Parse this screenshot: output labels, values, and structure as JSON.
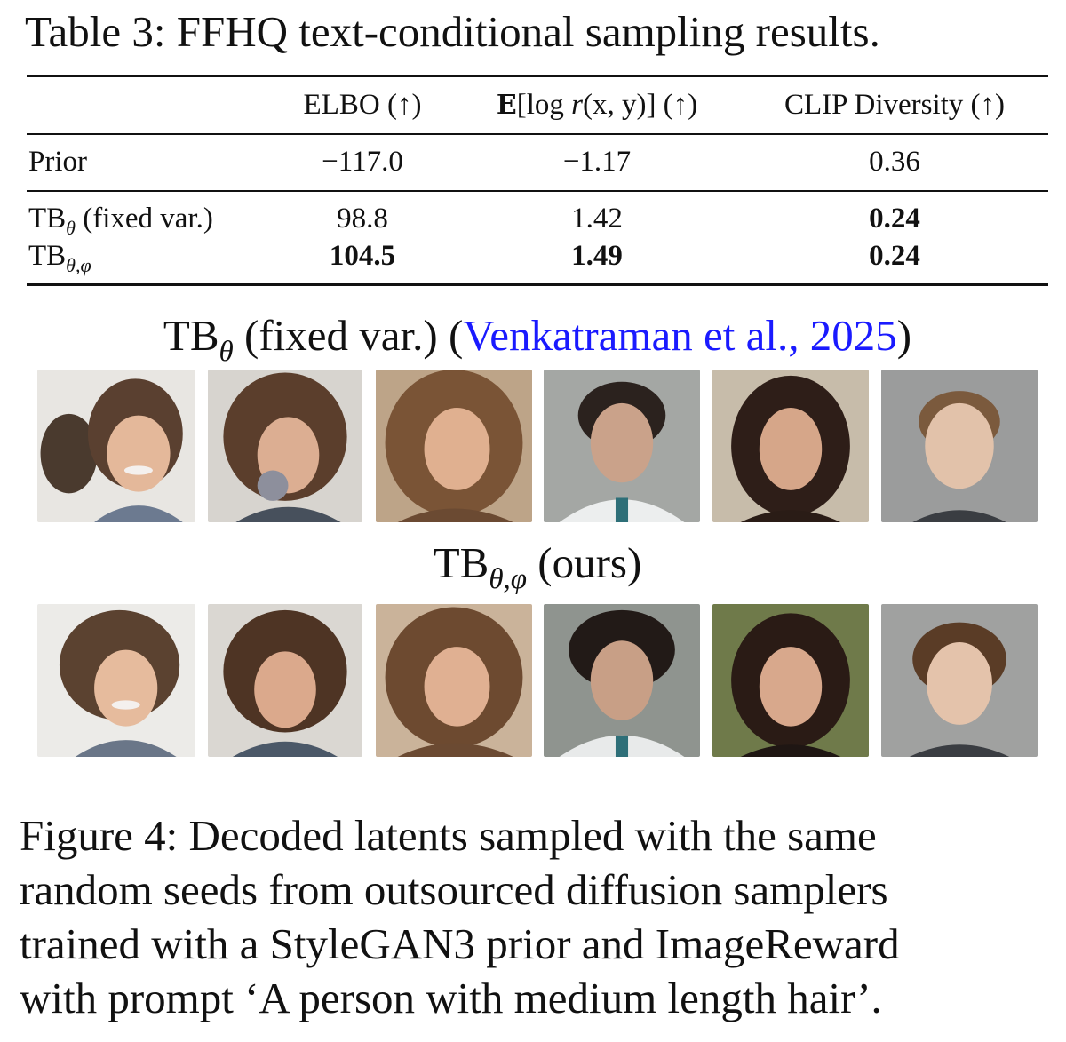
{
  "table": {
    "caption": "Table 3: FFHQ text-conditional sampling results.",
    "headers": {
      "col1": "ELBO (↑)",
      "col2_prefix": "E",
      "col2_main": "[log ",
      "col2_r": "r",
      "col2_args": "(x, y)] (↑)",
      "col3": "CLIP Diversity (↑)"
    },
    "rows": [
      {
        "label": "Prior",
        "sub": "",
        "suffix": "",
        "elbo": "−117.0",
        "logr": "−1.17",
        "clip": "0.36"
      },
      {
        "label": "TB",
        "sub": "θ",
        "suffix": " (fixed var.)",
        "elbo": "98.8",
        "logr": "1.42",
        "clip": "0.24"
      },
      {
        "label": "TB",
        "sub": "θ,φ",
        "suffix": "",
        "elbo": "104.5",
        "logr": "1.49",
        "clip": "0.24"
      }
    ]
  },
  "row1_heading": {
    "prefix": "TB",
    "sub": "θ",
    "middle": " (fixed var.) (",
    "cite": "Venkatraman et al., 2025",
    "close": ")"
  },
  "row2_heading": {
    "prefix": "TB",
    "sub": "θ,φ",
    "suffix": " (ours)"
  },
  "figure_caption": {
    "lines": [
      "Figure 4: Decoded latents sampled with the same",
      "random seeds from outsourced diffusion samplers",
      "trained with a StyleGAN3 prior and ImageReward",
      "with prompt ‘A person with medium length hair’."
    ]
  },
  "colors": {
    "citation": "#1a1aff",
    "text": "#111111"
  }
}
